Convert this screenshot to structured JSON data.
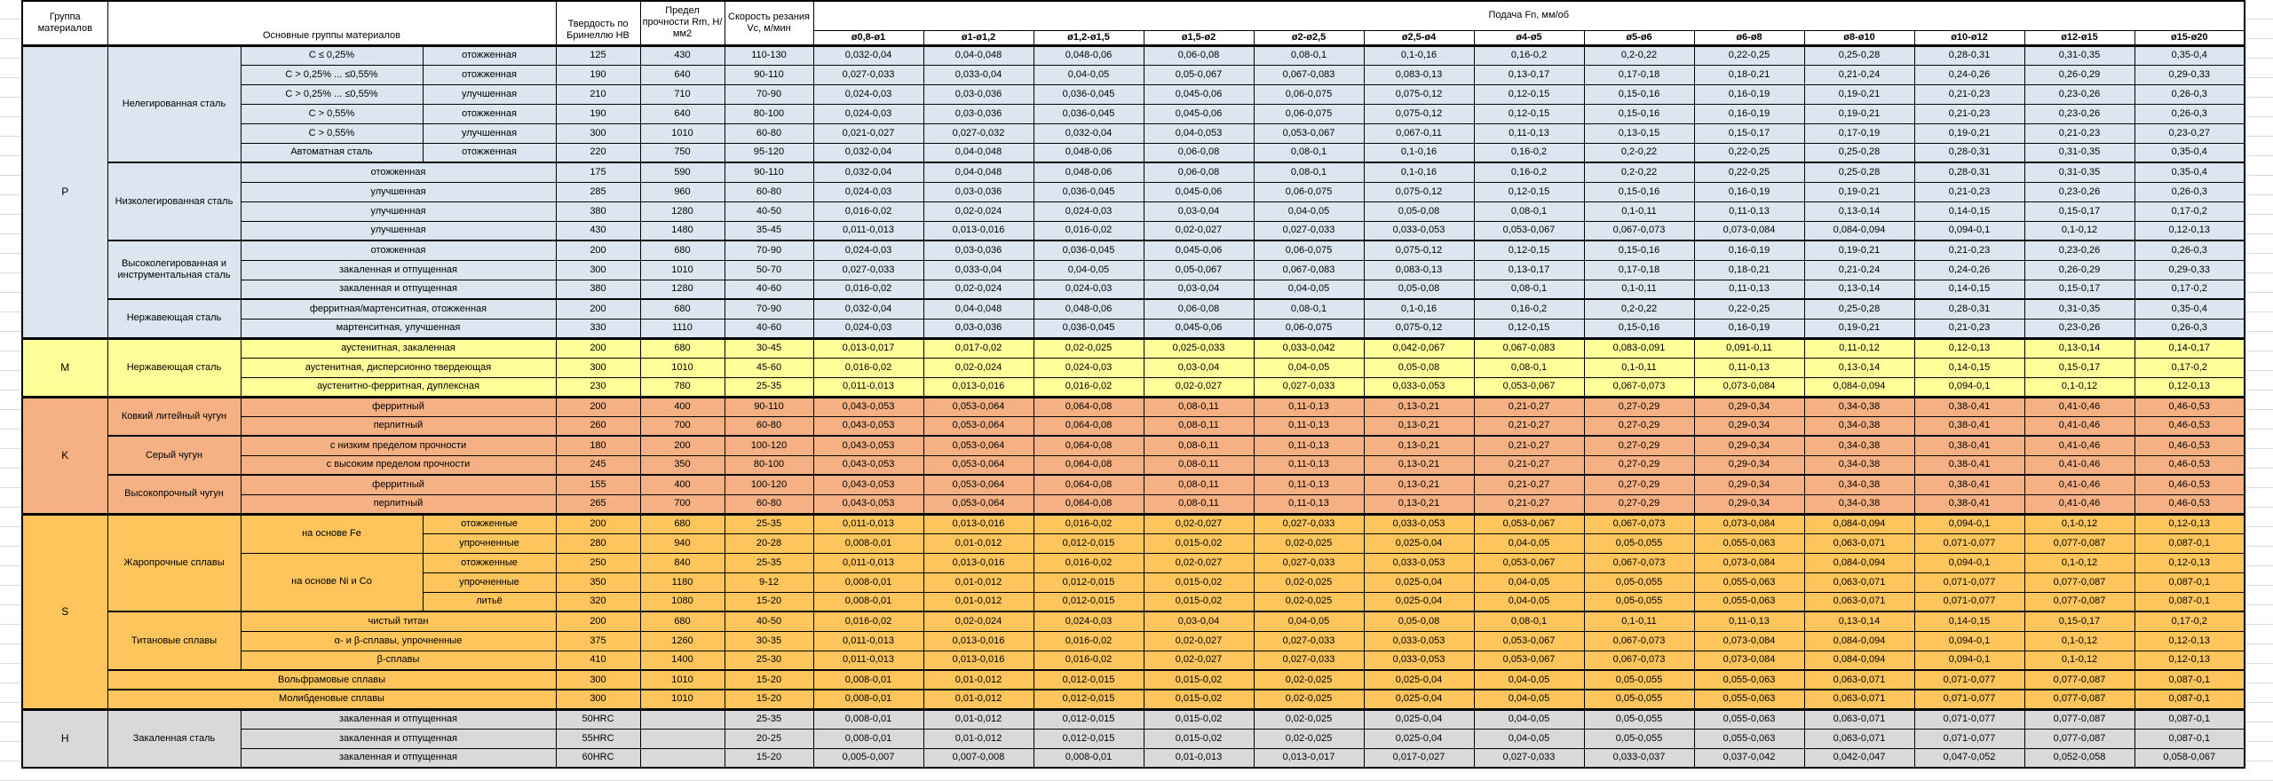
{
  "table": {
    "headers": {
      "group": "Группа материалов",
      "materials": "Основные группы материалов",
      "hardness": "Твердость по Бринеллю HB",
      "strength": "Предел прочности Rm, Н/мм2",
      "speed": "Скорость резания Vc, м/мин",
      "feed": "Подача Fn, мм/об",
      "diameters": [
        "ø0,8-ø1",
        "ø1-ø1,2",
        "ø1,2-ø1,5",
        "ø1,5-ø2",
        "ø2-ø2,5",
        "ø2,5-ø4",
        "ø4-ø5",
        "ø5-ø6",
        "ø6-ø8",
        "ø8-ø10",
        "ø10-ø12",
        "ø12-ø15",
        "ø15-ø20"
      ]
    },
    "feed_patterns": {
      "a": [
        "0,032-0,04",
        "0,04-0,048",
        "0,048-0,06",
        "0,06-0,08",
        "0,08-0,1",
        "0,1-0,16",
        "0,16-0,2",
        "0,2-0,22",
        "0,22-0,25",
        "0,25-0,28",
        "0,28-0,31",
        "0,31-0,35",
        "0,35-0,4"
      ],
      "b": [
        "0,027-0,033",
        "0,033-0,04",
        "0,04-0,05",
        "0,05-0,067",
        "0,067-0,083",
        "0,083-0,13",
        "0,13-0,17",
        "0,17-0,18",
        "0,18-0,21",
        "0,21-0,24",
        "0,24-0,26",
        "0,26-0,29",
        "0,29-0,33"
      ],
      "c": [
        "0,024-0,03",
        "0,03-0,036",
        "0,036-0,045",
        "0,045-0,06",
        "0,06-0,075",
        "0,075-0,12",
        "0,12-0,15",
        "0,15-0,16",
        "0,16-0,19",
        "0,19-0,21",
        "0,21-0,23",
        "0,23-0,26",
        "0,26-0,3"
      ],
      "d": [
        "0,021-0,027",
        "0,027-0,032",
        "0,032-0,04",
        "0,04-0,053",
        "0,053-0,067",
        "0,067-0,11",
        "0,11-0,13",
        "0,13-0,15",
        "0,15-0,17",
        "0,17-0,19",
        "0,19-0,21",
        "0,21-0,23",
        "0,23-0,27"
      ],
      "e": [
        "0,016-0,02",
        "0,02-0,024",
        "0,024-0,03",
        "0,03-0,04",
        "0,04-0,05",
        "0,05-0,08",
        "0,08-0,1",
        "0,1-0,11",
        "0,11-0,13",
        "0,13-0,14",
        "0,14-0,15",
        "0,15-0,17",
        "0,17-0,2"
      ],
      "f": [
        "0,011-0,013",
        "0,013-0,016",
        "0,016-0,02",
        "0,02-0,027",
        "0,027-0,033",
        "0,033-0,053",
        "0,053-0,067",
        "0,067-0,073",
        "0,073-0,084",
        "0,084-0,094",
        "0,094-0,1",
        "0,1-0,12",
        "0,12-0,13"
      ],
      "g": [
        "0,013-0,017",
        "0,017-0,02",
        "0,02-0,025",
        "0,025-0,033",
        "0,033-0,042",
        "0,042-0,067",
        "0,067-0,083",
        "0,083-0,091",
        "0,091-0,11",
        "0,11-0,12",
        "0,12-0,13",
        "0,13-0,14",
        "0,14-0,17"
      ],
      "k": [
        "0,043-0,053",
        "0,053-0,064",
        "0,064-0,08",
        "0,08-0,11",
        "0,11-0,13",
        "0,13-0,21",
        "0,21-0,27",
        "0,27-0,29",
        "0,29-0,34",
        "0,34-0,38",
        "0,38-0,41",
        "0,41-0,46",
        "0,46-0,53"
      ],
      "h": [
        "0,008-0,01",
        "0,01-0,012",
        "0,012-0,015",
        "0,015-0,02",
        "0,02-0,025",
        "0,025-0,04",
        "0,04-0,05",
        "0,05-0,055",
        "0,055-0,063",
        "0,063-0,071",
        "0,071-0,077",
        "0,077-0,087",
        "0,087-0,1"
      ],
      "i": [
        "0,005-0,007",
        "0,007-0,008",
        "0,008-0,01",
        "0,01-0,013",
        "0,013-0,017",
        "0,017-0,027",
        "0,027-0,033",
        "0,033-0,037",
        "0,037-0,042",
        "0,042-0,047",
        "0,047-0,052",
        "0,052-0,058",
        "0,058-0,067"
      ]
    },
    "groups": [
      {
        "letter": "P",
        "color": "#dce6f1",
        "rows": [
          {
            "cells": [
              {
                "t": "P",
                "rs": 15,
                "cls": "grp"
              },
              {
                "t": "Нелегированная сталь",
                "rs": 6
              },
              {
                "t": "C ≤ 0,25%"
              },
              {
                "t": "отожженная"
              }
            ],
            "hb": "125",
            "rm": "430",
            "vc": "110-130",
            "feed": "a"
          },
          {
            "cells": [
              {
                "t": "C > 0,25% ... ≤0,55%"
              },
              {
                "t": "отожженная"
              }
            ],
            "hb": "190",
            "rm": "640",
            "vc": "90-110",
            "feed": "b"
          },
          {
            "cells": [
              {
                "t": "C > 0,25% ... ≤0,55%"
              },
              {
                "t": "улучшенная"
              }
            ],
            "hb": "210",
            "rm": "710",
            "vc": "70-90",
            "feed": "c"
          },
          {
            "cells": [
              {
                "t": "C > 0,55%"
              },
              {
                "t": "отожженная"
              }
            ],
            "hb": "190",
            "rm": "640",
            "vc": "80-100",
            "feed": "c"
          },
          {
            "cells": [
              {
                "t": "C > 0,55%"
              },
              {
                "t": "улучшенная"
              }
            ],
            "hb": "300",
            "rm": "1010",
            "vc": "60-80",
            "feed": "d"
          },
          {
            "cells": [
              {
                "t": "Автоматная сталь"
              },
              {
                "t": "отожженная"
              }
            ],
            "hb": "220",
            "rm": "750",
            "vc": "95-120",
            "feed": "a"
          },
          {
            "thick": true,
            "cells": [
              {
                "t": "Низколегированная сталь",
                "rs": 4
              },
              {
                "t": "отожженная",
                "cs": 2
              }
            ],
            "hb": "175",
            "rm": "590",
            "vc": "90-110",
            "feed": "a"
          },
          {
            "cells": [
              {
                "t": "улучшенная",
                "cs": 2
              }
            ],
            "hb": "285",
            "rm": "960",
            "vc": "60-80",
            "feed": "c"
          },
          {
            "cells": [
              {
                "t": "улучшенная",
                "cs": 2
              }
            ],
            "hb": "380",
            "rm": "1280",
            "vc": "40-50",
            "feed": "e"
          },
          {
            "cells": [
              {
                "t": "улучшенная",
                "cs": 2
              }
            ],
            "hb": "430",
            "rm": "1480",
            "vc": "35-45",
            "feed": "f"
          },
          {
            "thick": true,
            "cells": [
              {
                "t": "Высоколегированная и инструментальная сталь",
                "rs": 3
              },
              {
                "t": "отожженная",
                "cs": 2
              }
            ],
            "hb": "200",
            "rm": "680",
            "vc": "70-90",
            "feed": "c"
          },
          {
            "cells": [
              {
                "t": "закаленная и отпущенная",
                "cs": 2
              }
            ],
            "hb": "300",
            "rm": "1010",
            "vc": "50-70",
            "feed": "b"
          },
          {
            "cells": [
              {
                "t": "закаленная и отпущенная",
                "cs": 2
              }
            ],
            "hb": "380",
            "rm": "1280",
            "vc": "40-60",
            "feed": "e"
          },
          {
            "thick": true,
            "cells": [
              {
                "t": "Нержавеющая сталь",
                "rs": 2
              },
              {
                "t": "ферритная/мартенситная, отожженная",
                "cs": 2
              }
            ],
            "hb": "200",
            "rm": "680",
            "vc": "70-90",
            "feed": "a"
          },
          {
            "cells": [
              {
                "t": "мартенситная, улучшенная",
                "cs": 2
              }
            ],
            "hb": "330",
            "rm": "1110",
            "vc": "40-60",
            "feed": "c"
          }
        ]
      },
      {
        "letter": "M",
        "color": "#ffff99",
        "rows": [
          {
            "cells": [
              {
                "t": "M",
                "rs": 3,
                "cls": "grp"
              },
              {
                "t": "Нержавеющая сталь",
                "rs": 3
              },
              {
                "t": "аустенитная, закаленная",
                "cs": 2
              }
            ],
            "hb": "200",
            "rm": "680",
            "vc": "30-45",
            "feed": "g"
          },
          {
            "cells": [
              {
                "t": "аустенитная, дисперсионно твердеющая",
                "cs": 2
              }
            ],
            "hb": "300",
            "rm": "1010",
            "vc": "45-60",
            "feed": "e"
          },
          {
            "cells": [
              {
                "t": "аустенитно-ферритная, дуплексная",
                "cs": 2
              }
            ],
            "hb": "230",
            "rm": "780",
            "vc": "25-35",
            "feed": "f"
          }
        ]
      },
      {
        "letter": "K",
        "color": "#f5b183",
        "rows": [
          {
            "cells": [
              {
                "t": "K",
                "rs": 6,
                "cls": "grp"
              },
              {
                "t": "Ковкий литейный чугун",
                "rs": 2
              },
              {
                "t": "ферритный",
                "cs": 2
              }
            ],
            "hb": "200",
            "rm": "400",
            "vc": "90-110",
            "feed": "k"
          },
          {
            "cells": [
              {
                "t": "перлитный",
                "cs": 2
              }
            ],
            "hb": "260",
            "rm": "700",
            "vc": "60-80",
            "feed": "k"
          },
          {
            "thick": true,
            "cells": [
              {
                "t": "Серый чугун",
                "rs": 2
              },
              {
                "t": "с низким пределом прочности",
                "cs": 2
              }
            ],
            "hb": "180",
            "rm": "200",
            "vc": "100-120",
            "feed": "k"
          },
          {
            "cells": [
              {
                "t": "с высоким пределом прочности",
                "cs": 2
              }
            ],
            "hb": "245",
            "rm": "350",
            "vc": "80-100",
            "feed": "k"
          },
          {
            "thick": true,
            "cells": [
              {
                "t": "Высокопрочный чугун",
                "rs": 2
              },
              {
                "t": "ферритный",
                "cs": 2
              }
            ],
            "hb": "155",
            "rm": "400",
            "vc": "100-120",
            "feed": "k"
          },
          {
            "cells": [
              {
                "t": "перлитный",
                "cs": 2
              }
            ],
            "hb": "265",
            "rm": "700",
            "vc": "60-80",
            "feed": "k"
          }
        ]
      },
      {
        "letter": "S",
        "color": "#fdc55c",
        "rows": [
          {
            "cells": [
              {
                "t": "S",
                "rs": 10,
                "cls": "grp"
              },
              {
                "t": "Жаропрочные сплавы",
                "rs": 5
              },
              {
                "t": "на основе Fe",
                "rs": 2
              },
              {
                "t": "отожженные"
              }
            ],
            "hb": "200",
            "rm": "680",
            "vc": "25-35",
            "feed": "f"
          },
          {
            "cells": [
              {
                "t": "упрочненные"
              }
            ],
            "hb": "280",
            "rm": "940",
            "vc": "20-28",
            "feed": "h"
          },
          {
            "cells": [
              {
                "t": "на основе Ni и Co",
                "rs": 3
              },
              {
                "t": "отожженные"
              }
            ],
            "hb": "250",
            "rm": "840",
            "vc": "25-35",
            "feed": "f"
          },
          {
            "cells": [
              {
                "t": "упрочненные"
              }
            ],
            "hb": "350",
            "rm": "1180",
            "vc": "9-12",
            "feed": "h"
          },
          {
            "cells": [
              {
                "t": "литьё"
              }
            ],
            "hb": "320",
            "rm": "1080",
            "vc": "15-20",
            "feed": "h"
          },
          {
            "thick": true,
            "cells": [
              {
                "t": "Титановые сплавы",
                "rs": 3
              },
              {
                "t": "чистый титан",
                "cs": 2
              }
            ],
            "hb": "200",
            "rm": "680",
            "vc": "40-50",
            "feed": "e"
          },
          {
            "cells": [
              {
                "t": "α- и β-сплавы, упрочненные",
                "cs": 2
              }
            ],
            "hb": "375",
            "rm": "1260",
            "vc": "30-35",
            "feed": "f"
          },
          {
            "cells": [
              {
                "t": "β-сплавы",
                "cs": 2
              }
            ],
            "hb": "410",
            "rm": "1400",
            "vc": "25-30",
            "feed": "f"
          },
          {
            "thick": true,
            "cells": [
              {
                "t": "Вольфрамовые сплавы",
                "cs": 3
              }
            ],
            "hb": "300",
            "rm": "1010",
            "vc": "15-20",
            "feed": "h"
          },
          {
            "thick": true,
            "cells": [
              {
                "t": "Молибденовые сплавы",
                "cs": 3
              }
            ],
            "hb": "300",
            "rm": "1010",
            "vc": "15-20",
            "feed": "h"
          }
        ]
      },
      {
        "letter": "H",
        "color": "#d9d9d9",
        "rows": [
          {
            "cells": [
              {
                "t": "H",
                "rs": 3,
                "cls": "grp"
              },
              {
                "t": "Закаленная сталь",
                "rs": 3
              },
              {
                "t": "закаленная и отпущенная",
                "cs": 2
              }
            ],
            "hb": "50HRC",
            "rm": "",
            "vc": "25-35",
            "feed": "h"
          },
          {
            "cells": [
              {
                "t": "закаленная и отпущенная",
                "cs": 2
              }
            ],
            "hb": "55HRC",
            "rm": "",
            "vc": "20-25",
            "feed": "h"
          },
          {
            "cells": [
              {
                "t": "закаленная и отпущенная",
                "cs": 2
              }
            ],
            "hb": "60HRC",
            "rm": "",
            "vc": "15-20",
            "feed": "i"
          }
        ]
      }
    ]
  }
}
